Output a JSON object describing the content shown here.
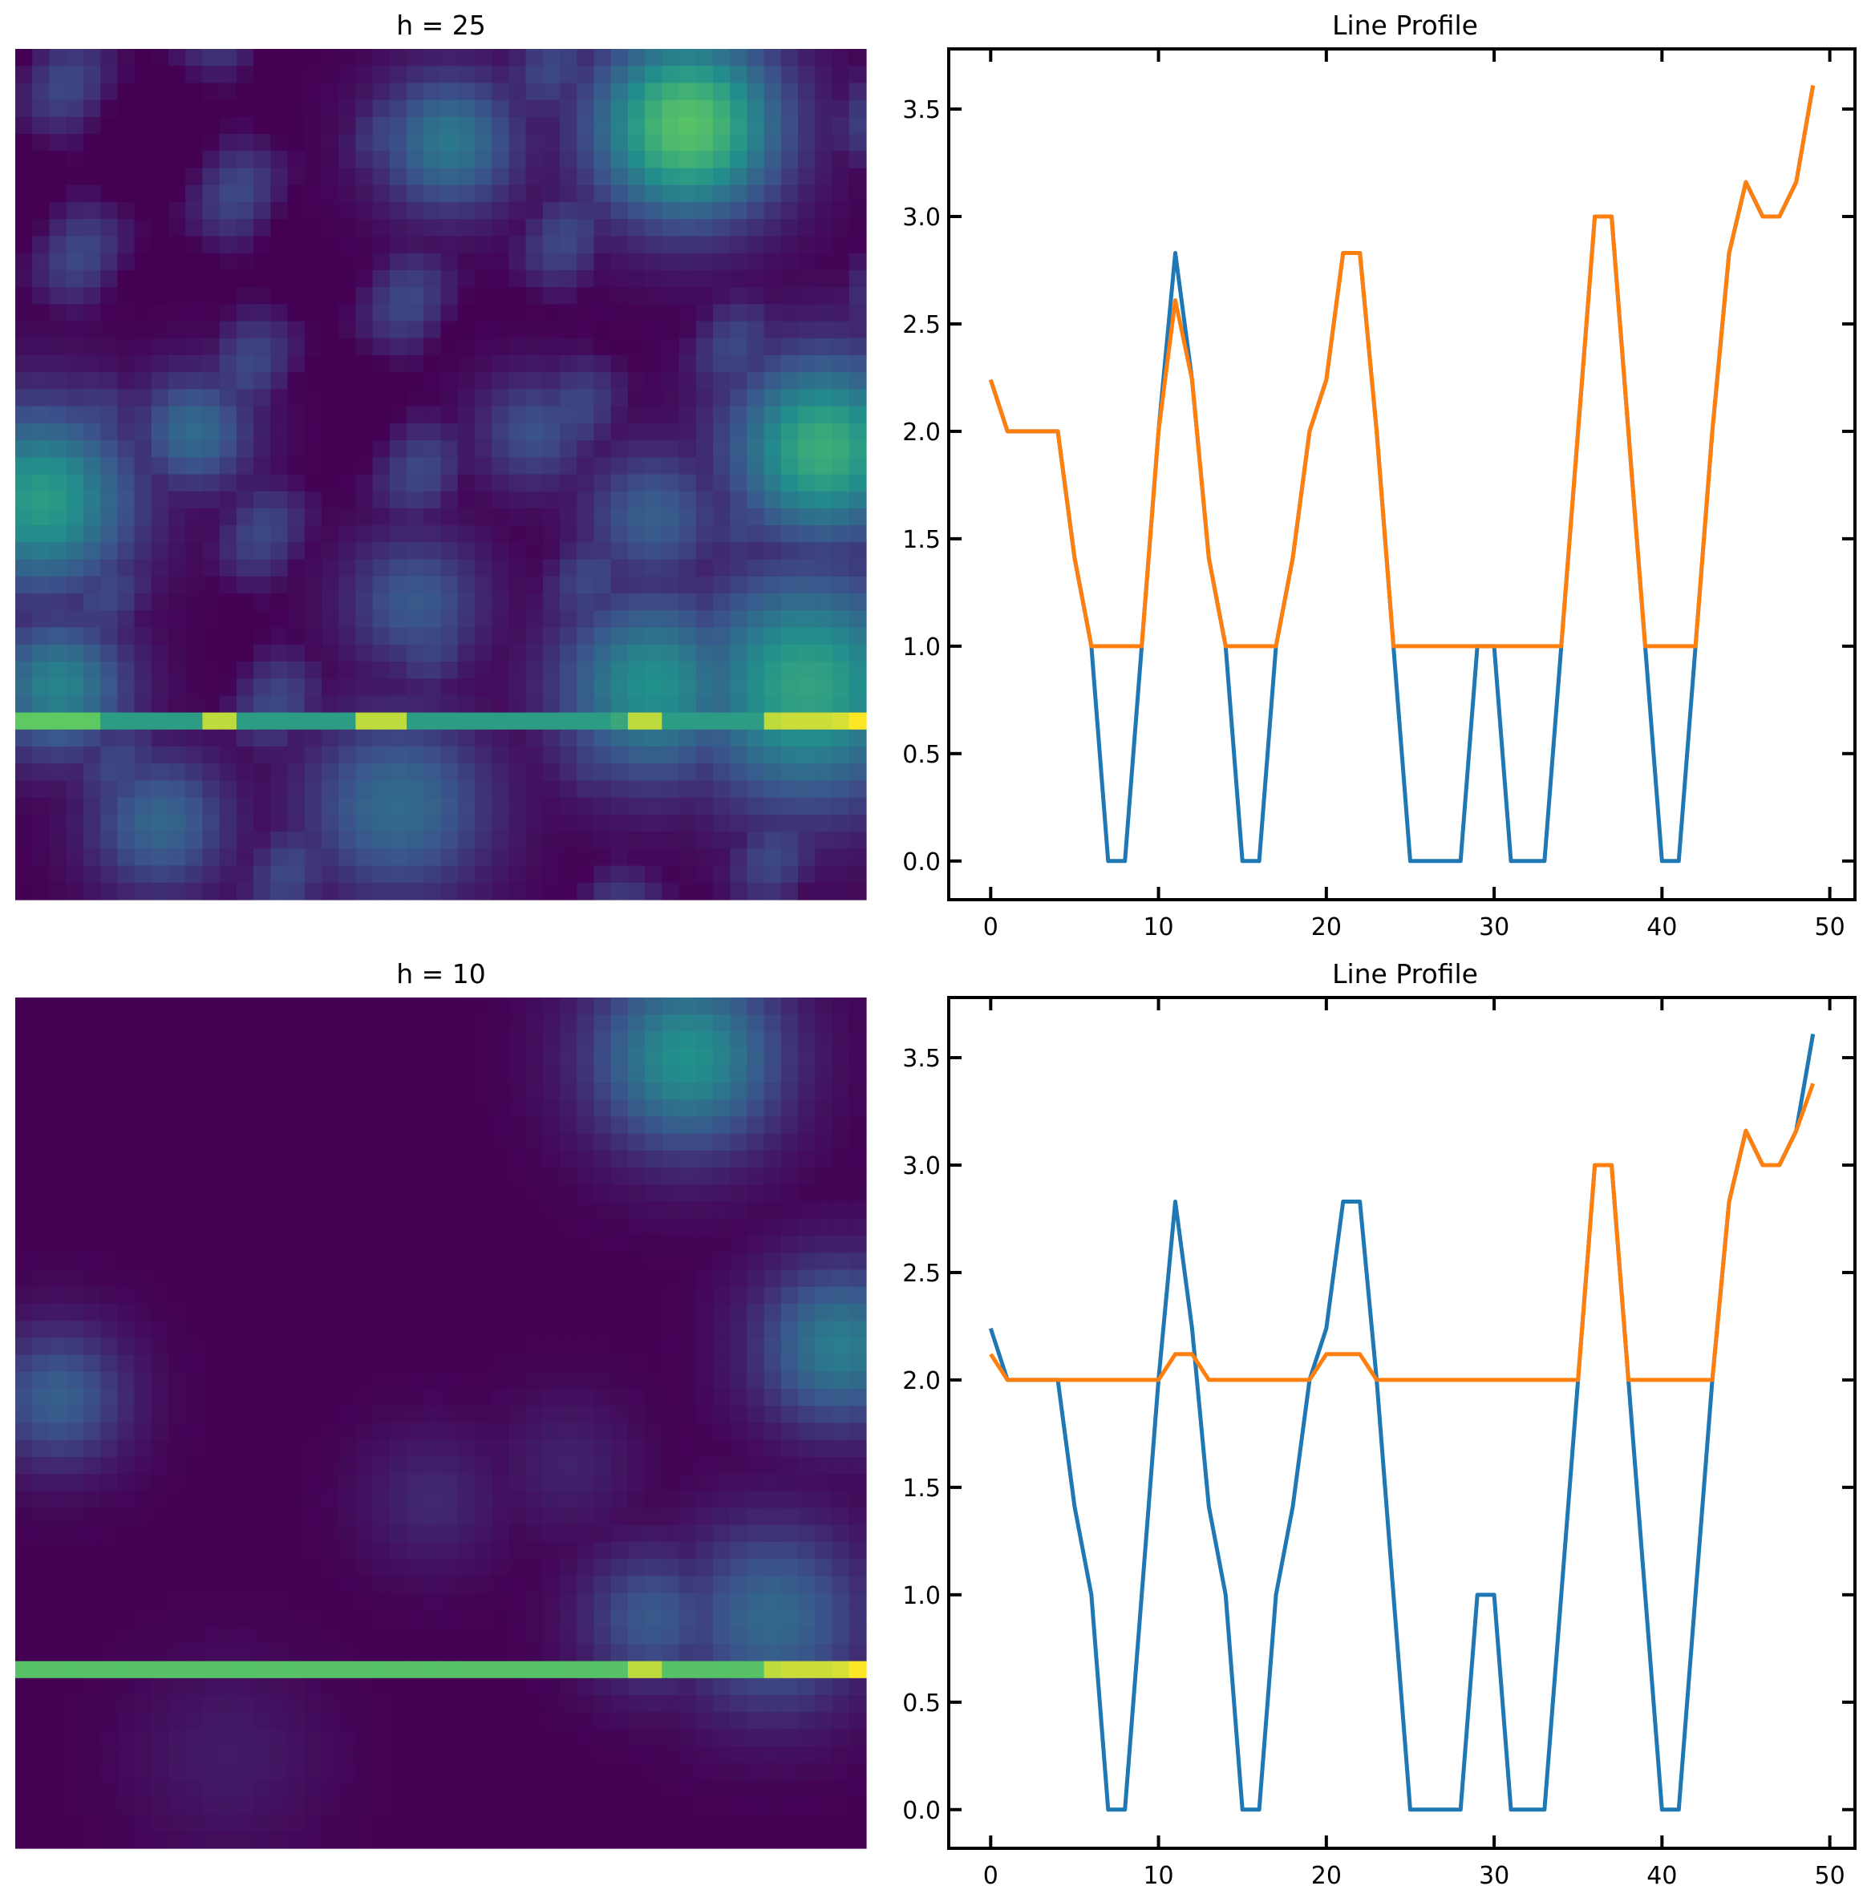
{
  "chart_data": [
    {
      "type": "heatmap",
      "title": "h = 25",
      "grid_size": 50,
      "highlight_row": 39,
      "colormap": "viridis"
    },
    {
      "type": "line",
      "title": "Line Profile",
      "xlabel": "",
      "ylabel": "",
      "xlim": [
        -2.5,
        51.5
      ],
      "ylim": [
        -0.18,
        3.78
      ],
      "x_ticks": [
        0,
        10,
        20,
        30,
        40,
        50
      ],
      "y_ticks": [
        0.0,
        0.5,
        1.0,
        1.5,
        2.0,
        2.5,
        3.0,
        3.5
      ],
      "x_tick_labels": [
        "0",
        "10",
        "20",
        "30",
        "40",
        "50"
      ],
      "y_tick_labels": [
        "0.0",
        "0.5",
        "1.0",
        "1.5",
        "2.0",
        "2.5",
        "3.0",
        "3.5"
      ],
      "series": [
        {
          "color": "#1f77b4",
          "values": [
            2.24,
            2.0,
            2.0,
            2.0,
            2.0,
            1.41,
            1.0,
            0.0,
            0.0,
            1.0,
            2.0,
            2.83,
            2.24,
            1.41,
            1.0,
            0.0,
            0.0,
            1.0,
            1.41,
            2.0,
            2.24,
            2.83,
            2.83,
            2.0,
            1.0,
            0.0,
            0.0,
            0.0,
            0.0,
            1.0,
            1.0,
            0.0,
            0.0,
            0.0,
            1.0,
            2.0,
            3.0,
            3.0,
            2.0,
            1.0,
            0.0,
            0.0,
            1.0,
            2.0,
            2.83,
            3.16,
            3.0,
            3.0,
            3.16,
            3.61
          ]
        },
        {
          "color": "#ff7f0e",
          "values": [
            2.24,
            2.0,
            2.0,
            2.0,
            2.0,
            1.41,
            1.0,
            1.0,
            1.0,
            1.0,
            2.0,
            2.61,
            2.24,
            1.41,
            1.0,
            1.0,
            1.0,
            1.0,
            1.41,
            2.0,
            2.24,
            2.83,
            2.83,
            2.0,
            1.0,
            1.0,
            1.0,
            1.0,
            1.0,
            1.0,
            1.0,
            1.0,
            1.0,
            1.0,
            1.0,
            2.0,
            3.0,
            3.0,
            2.0,
            1.0,
            1.0,
            1.0,
            1.0,
            2.0,
            2.83,
            3.16,
            3.0,
            3.0,
            3.16,
            3.61
          ]
        }
      ]
    },
    {
      "type": "heatmap",
      "title": "h = 10",
      "grid_size": 50,
      "highlight_row": 39,
      "colormap": "viridis"
    },
    {
      "type": "line",
      "title": "Line Profile",
      "xlabel": "",
      "ylabel": "",
      "xlim": [
        -2.5,
        51.5
      ],
      "ylim": [
        -0.18,
        3.78
      ],
      "x_ticks": [
        0,
        10,
        20,
        30,
        40,
        50
      ],
      "y_ticks": [
        0.0,
        0.5,
        1.0,
        1.5,
        2.0,
        2.5,
        3.0,
        3.5
      ],
      "x_tick_labels": [
        "0",
        "10",
        "20",
        "30",
        "40",
        "50"
      ],
      "y_tick_labels": [
        "0.0",
        "0.5",
        "1.0",
        "1.5",
        "2.0",
        "2.5",
        "3.0",
        "3.5"
      ],
      "series": [
        {
          "color": "#1f77b4",
          "values": [
            2.24,
            2.0,
            2.0,
            2.0,
            2.0,
            1.41,
            1.0,
            0.0,
            0.0,
            1.0,
            2.0,
            2.83,
            2.24,
            1.41,
            1.0,
            0.0,
            0.0,
            1.0,
            1.41,
            2.0,
            2.24,
            2.83,
            2.83,
            2.0,
            1.0,
            0.0,
            0.0,
            0.0,
            0.0,
            1.0,
            1.0,
            0.0,
            0.0,
            0.0,
            1.0,
            2.0,
            3.0,
            3.0,
            2.0,
            1.0,
            0.0,
            0.0,
            1.0,
            2.0,
            2.83,
            3.16,
            3.0,
            3.0,
            3.16,
            3.61
          ]
        },
        {
          "color": "#ff7f0e",
          "values": [
            2.12,
            2.0,
            2.0,
            2.0,
            2.0,
            2.0,
            2.0,
            2.0,
            2.0,
            2.0,
            2.0,
            2.12,
            2.12,
            2.0,
            2.0,
            2.0,
            2.0,
            2.0,
            2.0,
            2.0,
            2.12,
            2.12,
            2.12,
            2.0,
            2.0,
            2.0,
            2.0,
            2.0,
            2.0,
            2.0,
            2.0,
            2.0,
            2.0,
            2.0,
            2.0,
            2.0,
            3.0,
            3.0,
            2.0,
            2.0,
            2.0,
            2.0,
            2.0,
            2.0,
            2.83,
            3.16,
            3.0,
            3.0,
            3.16,
            3.38
          ]
        }
      ]
    }
  ]
}
